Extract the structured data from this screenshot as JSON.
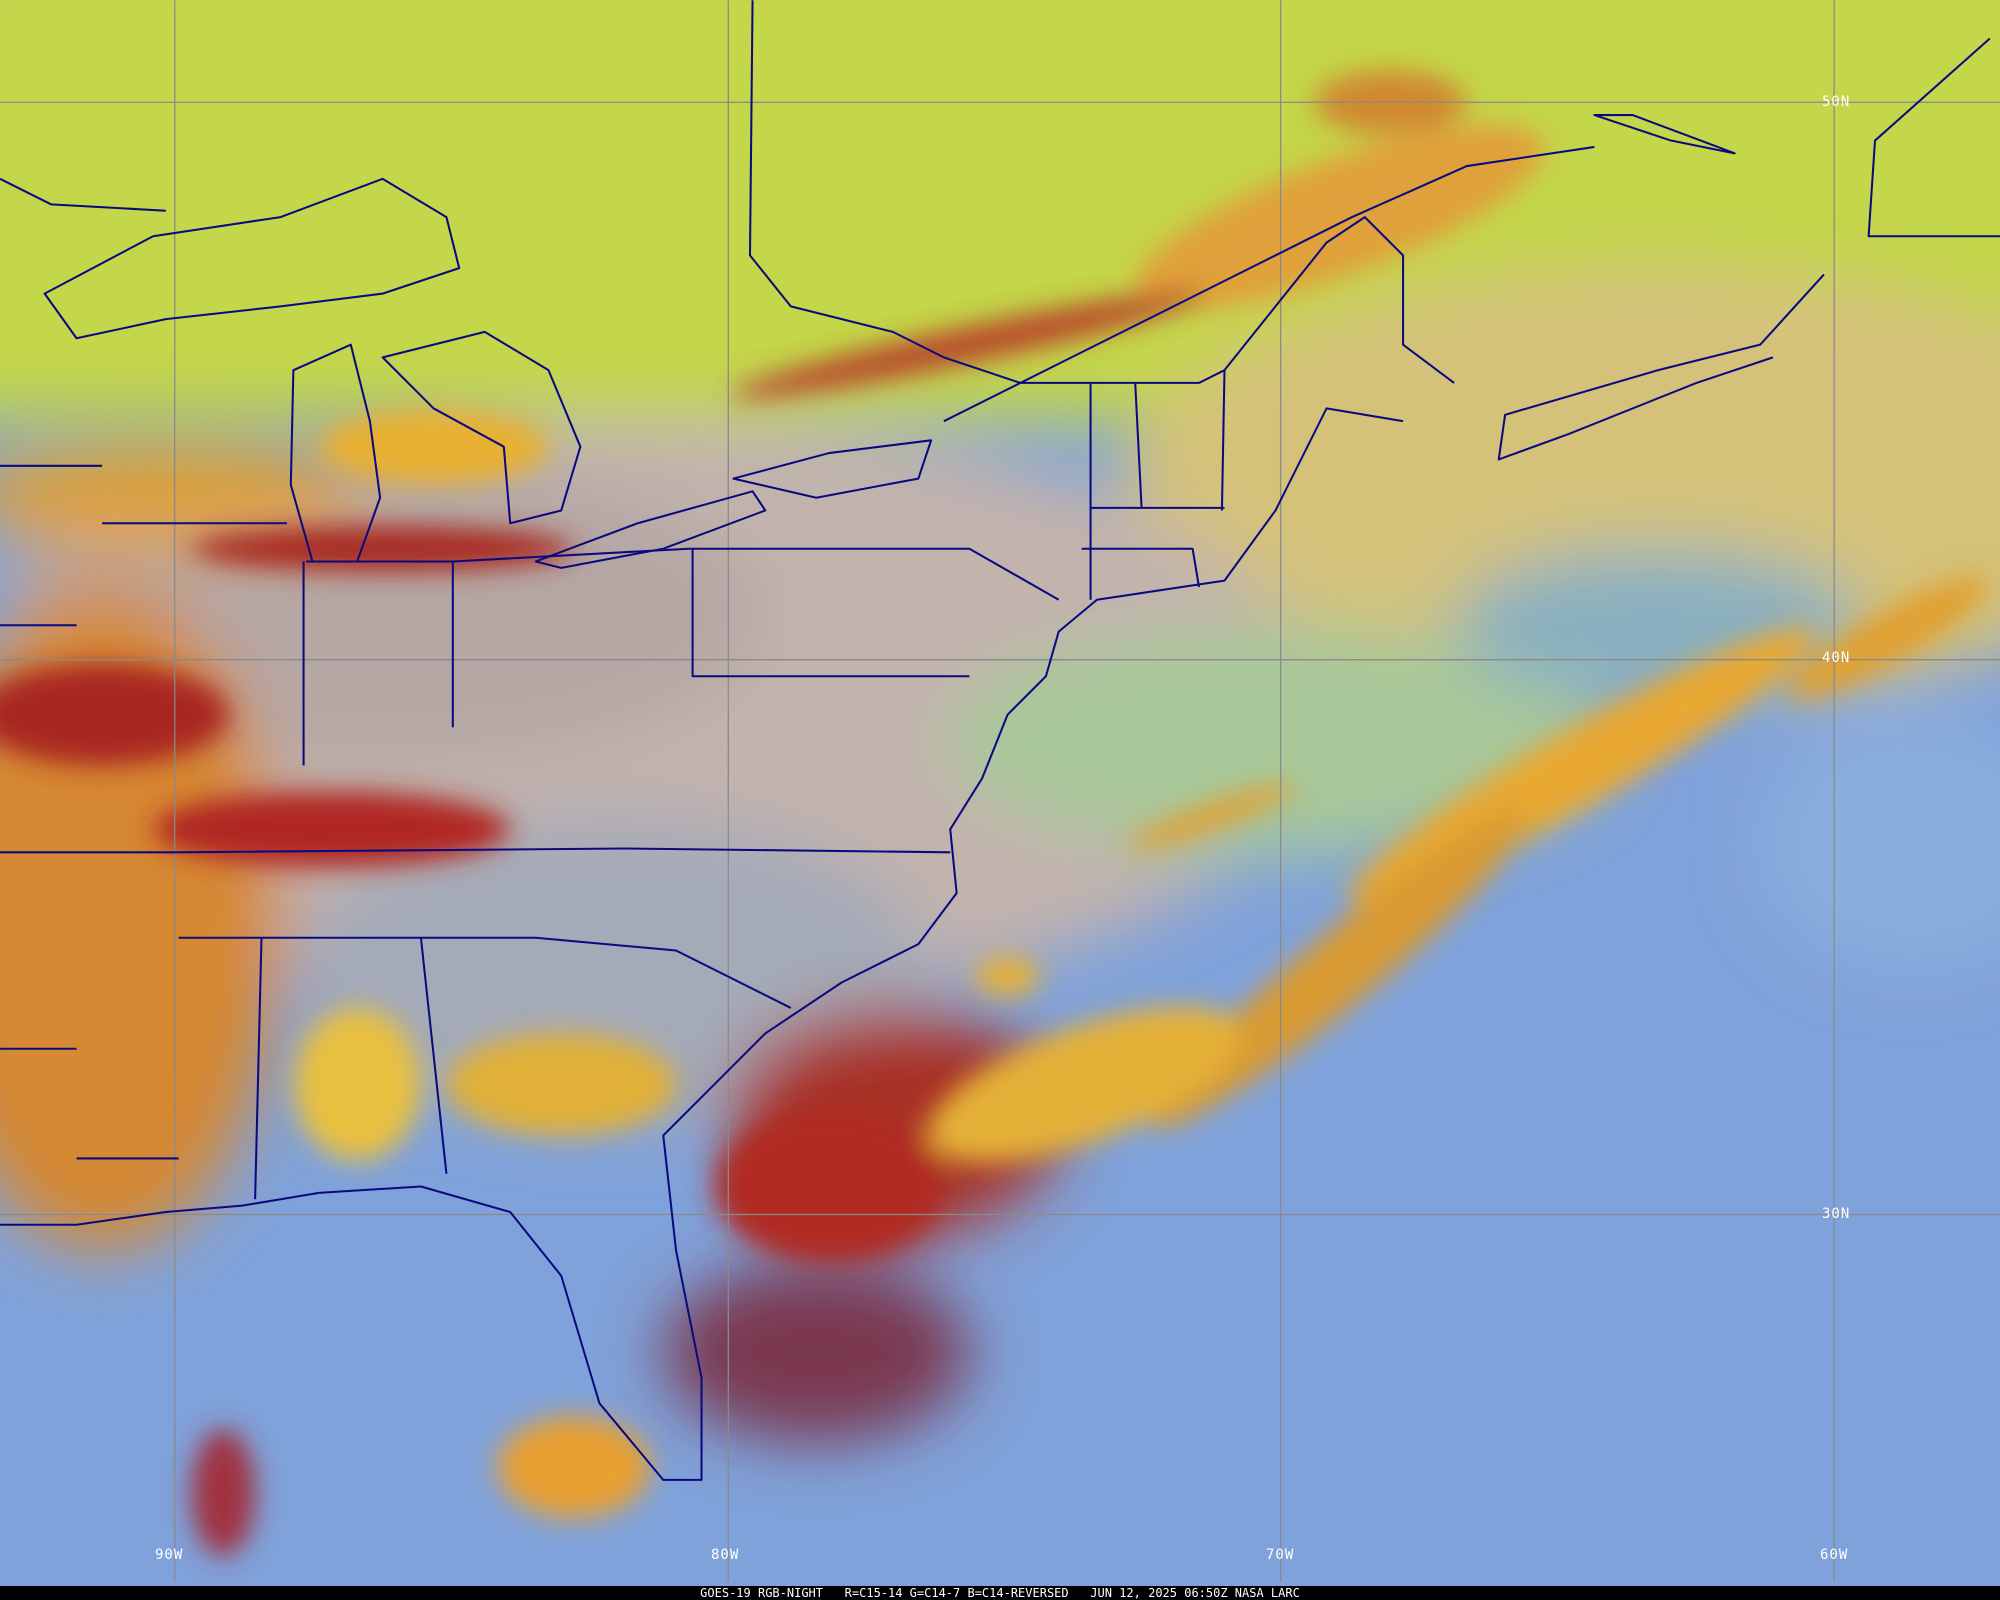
{
  "product": {
    "satellite": "GOES-19",
    "product_name": "RGB-NIGHT",
    "recipe": "R=C15-14 G=C14-7 B=C14-REVERSED",
    "datetime": "JUN 12, 2025 06:50Z",
    "source": "NASA LARC"
  },
  "caption": "GOES-19 RGB-NIGHT   R=C15-14 G=C14-7 B=C14-REVERSED   JUN 12, 2025 06:50Z NASA LARC",
  "grid": {
    "latitude_labels": [
      "50N",
      "40N",
      "30N"
    ],
    "longitude_labels": [
      "90W",
      "80W",
      "70W",
      "60W"
    ]
  },
  "colors": {
    "boundary_lines": "#0a0a80",
    "grid_lines": "#8a8a8a",
    "ocean_clear": "#7fa0dc",
    "high_cloud": "#e8d040",
    "deep_convection": "#a01818",
    "northern_clouds": "#c8e040"
  }
}
